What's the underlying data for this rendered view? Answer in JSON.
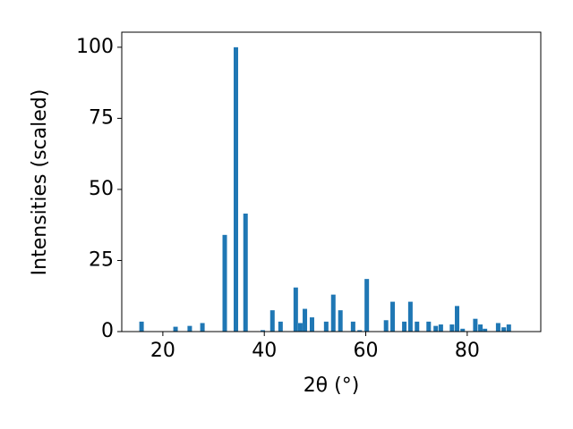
{
  "chart_data": {
    "type": "bar",
    "xlabel": "2θ (°)",
    "ylabel": "Intensities (scaled)",
    "x": [
      15.8,
      22.5,
      25.3,
      27.8,
      32.2,
      34.4,
      36.3,
      39.7,
      41.6,
      43.2,
      46.2,
      47.1,
      48.0,
      49.4,
      52.2,
      53.6,
      55.0,
      57.5,
      58.8,
      60.2,
      64.0,
      65.3,
      67.6,
      68.8,
      70.1,
      72.4,
      73.8,
      74.8,
      77.0,
      78.0,
      79.1,
      81.6,
      82.6,
      83.5,
      86.1,
      87.2,
      88.2
    ],
    "values": [
      3.5,
      1.7,
      2,
      3,
      34,
      100,
      41.5,
      0.5,
      7.5,
      3.5,
      15.5,
      3,
      8,
      5,
      3.5,
      13,
      7.5,
      3.5,
      0.5,
      18.5,
      4,
      10.5,
      3.5,
      10.5,
      3.5,
      3.5,
      2,
      2.5,
      2.5,
      9,
      1,
      4.5,
      2.5,
      1,
      3,
      1.5,
      2.5
    ],
    "color": "#1f77b4",
    "xlim": [
      11.9,
      94.5
    ],
    "ylim": [
      0,
      105.3
    ],
    "xticks": [
      20,
      40,
      60,
      80
    ],
    "yticks": [
      0,
      25,
      50,
      75,
      100
    ],
    "grid": false
  }
}
